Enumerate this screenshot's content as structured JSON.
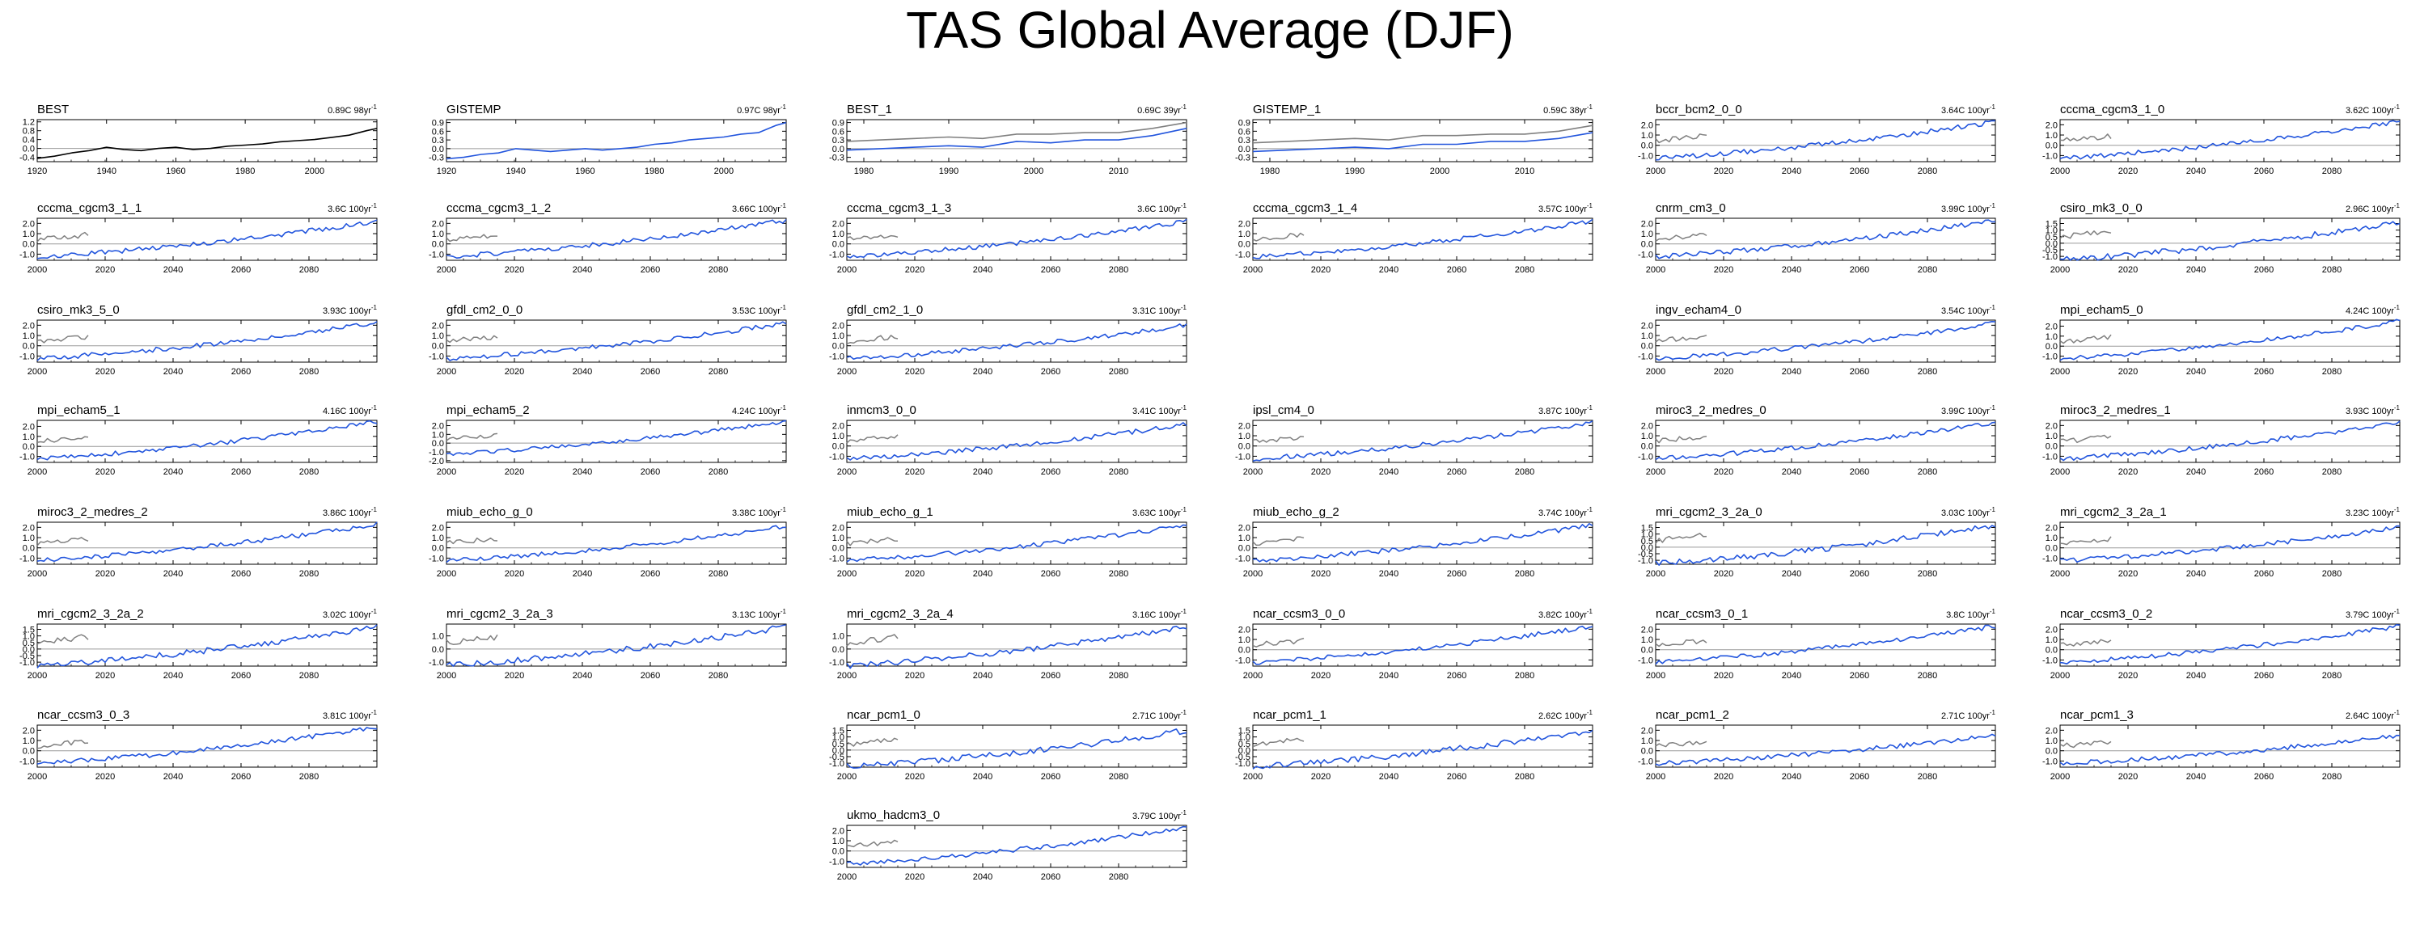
{
  "title": "TAS Global Average (DJF)",
  "colors": {
    "observed": "#000000",
    "model": "#2255dd",
    "reference": "#808080",
    "zero_line": "#9a9a9a"
  },
  "chart_data": [
    {
      "type": "line",
      "name": "BEST",
      "trend": "0.89C 98yr",
      "trend_main": "0.89C 98yr",
      "trend_sup": "-1",
      "xlim": [
        1920,
        2018
      ],
      "xticks": [
        "1920",
        "1940",
        "1960",
        "1980",
        "2000"
      ],
      "yticks": [
        "1.2",
        "0.8",
        "0.4",
        "0.0",
        "-0.4"
      ],
      "ylim": [
        -0.6,
        1.3
      ],
      "style": "obs",
      "x": [
        1920,
        1925,
        1930,
        1935,
        1940,
        1945,
        1950,
        1955,
        1960,
        1965,
        1970,
        1975,
        1980,
        1985,
        1990,
        1995,
        2000,
        2005,
        2010,
        2015,
        2018
      ],
      "y": [
        -0.45,
        -0.35,
        -0.2,
        -0.1,
        0.05,
        -0.05,
        -0.1,
        0.0,
        0.05,
        -0.05,
        0.0,
        0.1,
        0.15,
        0.2,
        0.3,
        0.35,
        0.4,
        0.5,
        0.6,
        0.8,
        0.9
      ]
    },
    {
      "type": "line",
      "name": "GISTEMP",
      "trend": "0.97C 98yr",
      "trend_main": "0.97C 98yr",
      "trend_sup": "-1",
      "xlim": [
        1920,
        2018
      ],
      "xticks": [
        "1920",
        "1940",
        "1960",
        "1980",
        "2000"
      ],
      "yticks": [
        "0.9",
        "0.6",
        "0.3",
        "0.0",
        "-0.3"
      ],
      "ylim": [
        -0.45,
        1.0
      ],
      "style": "model",
      "x": [
        1920,
        1925,
        1930,
        1935,
        1940,
        1945,
        1950,
        1955,
        1960,
        1965,
        1970,
        1975,
        1980,
        1985,
        1990,
        1995,
        2000,
        2005,
        2010,
        2015,
        2018
      ],
      "y": [
        -0.35,
        -0.3,
        -0.2,
        -0.15,
        0.0,
        -0.05,
        -0.1,
        -0.05,
        0.0,
        -0.05,
        0.0,
        0.05,
        0.15,
        0.2,
        0.3,
        0.35,
        0.4,
        0.5,
        0.55,
        0.8,
        0.9
      ]
    },
    {
      "type": "line",
      "name": "BEST_1",
      "trend": "0.69C 39yr",
      "trend_main": "0.69C 39yr",
      "trend_sup": "-1",
      "xlim": [
        1978,
        2018
      ],
      "xticks": [
        "1980",
        "1990",
        "2000",
        "2010"
      ],
      "yticks": [
        "0.9",
        "0.6",
        "0.3",
        "0.0",
        "-0.3"
      ],
      "ylim": [
        -0.45,
        1.0
      ],
      "style": "pair",
      "x": [
        1978,
        1982,
        1986,
        1990,
        1994,
        1998,
        2002,
        2006,
        2010,
        2014,
        2018
      ],
      "y": [
        -0.05,
        0.0,
        0.05,
        0.1,
        0.05,
        0.25,
        0.2,
        0.3,
        0.3,
        0.45,
        0.7
      ],
      "y2": [
        0.25,
        0.3,
        0.35,
        0.4,
        0.35,
        0.5,
        0.5,
        0.55,
        0.55,
        0.7,
        0.9
      ]
    },
    {
      "type": "line",
      "name": "GISTEMP_1",
      "trend": "0.59C 38yr",
      "trend_main": "0.59C 38yr",
      "trend_sup": "-1",
      "xlim": [
        1978,
        2018
      ],
      "xticks": [
        "1980",
        "1990",
        "2000",
        "2010"
      ],
      "yticks": [
        "0.9",
        "0.6",
        "0.3",
        "0.0",
        "-0.3"
      ],
      "ylim": [
        -0.45,
        1.0
      ],
      "style": "pair",
      "x": [
        1978,
        1982,
        1986,
        1990,
        1994,
        1998,
        2002,
        2006,
        2010,
        2014,
        2018
      ],
      "y": [
        -0.1,
        -0.05,
        0.0,
        0.05,
        0.0,
        0.15,
        0.15,
        0.25,
        0.25,
        0.35,
        0.55
      ],
      "y2": [
        0.2,
        0.25,
        0.3,
        0.35,
        0.3,
        0.45,
        0.45,
        0.5,
        0.5,
        0.6,
        0.8
      ]
    },
    {
      "type": "line",
      "name": "bccr_bcm2_0_0",
      "trend": "3.64C 100yr",
      "trend_main": "3.64C 100yr",
      "trend_sup": "-1",
      "style": "proj",
      "yticks": [
        "2.0",
        "1.0",
        "0.0",
        "-1.0"
      ],
      "ylim": [
        -1.6,
        2.5
      ],
      "end": 2.3
    },
    {
      "type": "line",
      "name": "cccma_cgcm3_1_0",
      "trend": "3.62C 100yr",
      "trend_main": "3.62C 100yr",
      "trend_sup": "-1",
      "style": "proj",
      "yticks": [
        "2.0",
        "1.0",
        "0.0",
        "-1.0"
      ],
      "ylim": [
        -1.6,
        2.5
      ],
      "end": 2.3
    },
    {
      "type": "line",
      "name": "cccma_cgcm3_1_1",
      "trend": "3.6C 100yr",
      "trend_main": "3.6C 100yr",
      "trend_sup": "-1",
      "style": "proj",
      "yticks": [
        "2.0",
        "1.0",
        "0.0",
        "-1.0"
      ],
      "ylim": [
        -1.6,
        2.5
      ],
      "end": 2.2
    },
    {
      "type": "line",
      "name": "cccma_cgcm3_1_2",
      "trend": "3.66C 100yr",
      "trend_main": "3.66C 100yr",
      "trend_sup": "-1",
      "style": "proj",
      "yticks": [
        "2.0",
        "1.0",
        "0.0",
        "-1.0"
      ],
      "ylim": [
        -1.6,
        2.5
      ],
      "end": 2.3
    },
    {
      "type": "line",
      "name": "cccma_cgcm3_1_3",
      "trend": "3.6C 100yr",
      "trend_main": "3.6C 100yr",
      "trend_sup": "-1",
      "style": "proj",
      "yticks": [
        "2.0",
        "1.0",
        "0.0",
        "-1.0"
      ],
      "ylim": [
        -1.6,
        2.5
      ],
      "end": 2.2
    },
    {
      "type": "line",
      "name": "cccma_cgcm3_1_4",
      "trend": "3.57C 100yr",
      "trend_main": "3.57C 100yr",
      "trend_sup": "-1",
      "style": "proj",
      "yticks": [
        "2.0",
        "1.0",
        "0.0",
        "-1.0"
      ],
      "ylim": [
        -1.6,
        2.5
      ],
      "end": 2.2
    },
    {
      "type": "line",
      "name": "cnrm_cm3_0",
      "trend": "3.99C 100yr",
      "trend_main": "3.99C 100yr",
      "trend_sup": "-1",
      "style": "proj",
      "yticks": [
        "2.0",
        "1.0",
        "0.0",
        "-1.0"
      ],
      "ylim": [
        -1.6,
        2.5
      ],
      "end": 2.3
    },
    {
      "type": "line",
      "name": "csiro_mk3_0_0",
      "trend": "2.96C 100yr",
      "trend_main": "2.96C 100yr",
      "trend_sup": "-1",
      "style": "proj",
      "yticks": [
        "1.5",
        "1.0",
        "0.5",
        "0.0",
        "-0.5",
        "-1.0"
      ],
      "ylim": [
        -1.3,
        1.9
      ],
      "end": 1.6
    },
    {
      "type": "line",
      "name": "csiro_mk3_5_0",
      "trend": "3.93C 100yr",
      "trend_main": "3.93C 100yr",
      "trend_sup": "-1",
      "style": "proj",
      "yticks": [
        "2.0",
        "1.0",
        "0.0",
        "-1.0"
      ],
      "ylim": [
        -1.6,
        2.5
      ],
      "end": 2.3
    },
    {
      "type": "line",
      "name": "gfdl_cm2_0_0",
      "trend": "3.53C 100yr",
      "trend_main": "3.53C 100yr",
      "trend_sup": "-1",
      "style": "proj",
      "yticks": [
        "2.0",
        "1.0",
        "0.0",
        "-1.0"
      ],
      "ylim": [
        -1.6,
        2.5
      ],
      "end": 2.2
    },
    {
      "type": "line",
      "name": "gfdl_cm2_1_0",
      "trend": "3.31C 100yr",
      "trend_main": "3.31C 100yr",
      "trend_sup": "-1",
      "style": "proj",
      "yticks": [
        "2.0",
        "1.0",
        "0.0",
        "-1.0"
      ],
      "ylim": [
        -1.6,
        2.5
      ],
      "end": 2.0
    },
    {
      "type": "line",
      "name": "ingv_echam4_0",
      "trend": "3.54C 100yr",
      "trend_main": "3.54C 100yr",
      "trend_sup": "-1",
      "style": "proj",
      "yticks": [
        "2.0",
        "1.0",
        "0.0",
        "-1.0"
      ],
      "ylim": [
        -1.6,
        2.5
      ],
      "end": 2.2
    },
    {
      "type": "line",
      "name": "mpi_echam5_0",
      "trend": "4.24C 100yr",
      "trend_main": "4.24C 100yr",
      "trend_sup": "-1",
      "style": "proj",
      "yticks": [
        "2.0",
        "1.0",
        "0.0",
        "-1.0"
      ],
      "ylim": [
        -1.6,
        2.6
      ],
      "end": 2.5
    },
    {
      "type": "line",
      "name": "mpi_echam5_1",
      "trend": "4.16C 100yr",
      "trend_main": "4.16C 100yr",
      "trend_sup": "-1",
      "style": "proj",
      "yticks": [
        "2.0",
        "1.0",
        "0.0",
        "-1.0"
      ],
      "ylim": [
        -1.6,
        2.6
      ],
      "end": 2.5
    },
    {
      "type": "line",
      "name": "mpi_echam5_2",
      "trend": "4.24C 100yr",
      "trend_main": "4.24C 100yr",
      "trend_sup": "-1",
      "style": "proj",
      "yticks": [
        "2.0",
        "1.0",
        "0.0",
        "-1.0",
        "-2.0"
      ],
      "ylim": [
        -2.2,
        2.6
      ],
      "end": 2.5
    },
    {
      "type": "line",
      "name": "inmcm3_0_0",
      "trend": "3.41C 100yr",
      "trend_main": "3.41C 100yr",
      "trend_sup": "-1",
      "style": "proj",
      "yticks": [
        "2.0",
        "1.0",
        "0.0",
        "-1.0"
      ],
      "ylim": [
        -1.6,
        2.5
      ],
      "end": 2.1
    },
    {
      "type": "line",
      "name": "ipsl_cm4_0",
      "trend": "3.87C 100yr",
      "trend_main": "3.87C 100yr",
      "trend_sup": "-1",
      "style": "proj",
      "yticks": [
        "2.0",
        "1.0",
        "0.0",
        "-1.0"
      ],
      "ylim": [
        -1.6,
        2.5
      ],
      "end": 2.3
    },
    {
      "type": "line",
      "name": "miroc3_2_medres_0",
      "trend": "3.99C 100yr",
      "trend_main": "3.99C 100yr",
      "trend_sup": "-1",
      "style": "proj",
      "yticks": [
        "2.0",
        "1.0",
        "0.0",
        "-1.0"
      ],
      "ylim": [
        -1.6,
        2.5
      ],
      "end": 2.3
    },
    {
      "type": "line",
      "name": "miroc3_2_medres_1",
      "trend": "3.93C 100yr",
      "trend_main": "3.93C 100yr",
      "trend_sup": "-1",
      "style": "proj",
      "yticks": [
        "2.0",
        "1.0",
        "0.0",
        "-1.0"
      ],
      "ylim": [
        -1.6,
        2.5
      ],
      "end": 2.3
    },
    {
      "type": "line",
      "name": "miroc3_2_medres_2",
      "trend": "3.86C 100yr",
      "trend_main": "3.86C 100yr",
      "trend_sup": "-1",
      "style": "proj",
      "yticks": [
        "2.0",
        "1.0",
        "0.0",
        "-1.0"
      ],
      "ylim": [
        -1.6,
        2.5
      ],
      "end": 2.3
    },
    {
      "type": "line",
      "name": "miub_echo_g_0",
      "trend": "3.38C 100yr",
      "trend_main": "3.38C 100yr",
      "trend_sup": "-1",
      "style": "proj",
      "yticks": [
        "2.0",
        "1.0",
        "0.0",
        "-1.0"
      ],
      "ylim": [
        -1.6,
        2.5
      ],
      "end": 2.1
    },
    {
      "type": "line",
      "name": "miub_echo_g_1",
      "trend": "3.63C 100yr",
      "trend_main": "3.63C 100yr",
      "trend_sup": "-1",
      "style": "proj",
      "yticks": [
        "2.0",
        "1.0",
        "0.0",
        "-1.0"
      ],
      "ylim": [
        -1.6,
        2.5
      ],
      "end": 2.2
    },
    {
      "type": "line",
      "name": "miub_echo_g_2",
      "trend": "3.74C 100yr",
      "trend_main": "3.74C 100yr",
      "trend_sup": "-1",
      "style": "proj",
      "yticks": [
        "2.0",
        "1.0",
        "0.0",
        "-1.0"
      ],
      "ylim": [
        -1.6,
        2.5
      ],
      "end": 2.2
    },
    {
      "type": "line",
      "name": "mri_cgcm2_3_2a_0",
      "trend": "3.03C 100yr",
      "trend_main": "3.03C 100yr",
      "trend_sup": "-1",
      "style": "proj",
      "yticks": [
        "1.5",
        "1.0",
        "0.5",
        "0.0",
        "-0.5",
        "-1.0"
      ],
      "ylim": [
        -1.3,
        1.9
      ],
      "end": 1.7
    },
    {
      "type": "line",
      "name": "mri_cgcm2_3_2a_1",
      "trend": "3.23C 100yr",
      "trend_main": "3.23C 100yr",
      "trend_sup": "-1",
      "style": "proj",
      "yticks": [
        "2.0",
        "1.0",
        "0.0",
        "-1.0"
      ],
      "ylim": [
        -1.6,
        2.5
      ],
      "end": 2.0
    },
    {
      "type": "line",
      "name": "mri_cgcm2_3_2a_2",
      "trend": "3.02C 100yr",
      "trend_main": "3.02C 100yr",
      "trend_sup": "-1",
      "style": "proj",
      "yticks": [
        "1.5",
        "1.0",
        "0.5",
        "0.0",
        "-0.5",
        "-1.0"
      ],
      "ylim": [
        -1.3,
        1.9
      ],
      "end": 1.7
    },
    {
      "type": "line",
      "name": "mri_cgcm2_3_2a_3",
      "trend": "3.13C 100yr",
      "trend_main": "3.13C 100yr",
      "trend_sup": "-1",
      "style": "proj",
      "yticks": [
        "1.0",
        "0.0",
        "-1.0"
      ],
      "ylim": [
        -1.3,
        1.9
      ],
      "end": 1.7
    },
    {
      "type": "line",
      "name": "mri_cgcm2_3_2a_4",
      "trend": "3.16C 100yr",
      "trend_main": "3.16C 100yr",
      "trend_sup": "-1",
      "style": "proj",
      "yticks": [
        "1.0",
        "0.0",
        "-1.0"
      ],
      "ylim": [
        -1.3,
        1.9
      ],
      "end": 1.7
    },
    {
      "type": "line",
      "name": "ncar_ccsm3_0_0",
      "trend": "3.82C 100yr",
      "trend_main": "3.82C 100yr",
      "trend_sup": "-1",
      "style": "proj",
      "yticks": [
        "2.0",
        "1.0",
        "0.0",
        "-1.0"
      ],
      "ylim": [
        -1.6,
        2.5
      ],
      "end": 2.3
    },
    {
      "type": "line",
      "name": "ncar_ccsm3_0_1",
      "trend": "3.8C 100yr",
      "trend_main": "3.8C 100yr",
      "trend_sup": "-1",
      "style": "proj",
      "yticks": [
        "2.0",
        "1.0",
        "0.0",
        "-1.0"
      ],
      "ylim": [
        -1.6,
        2.5
      ],
      "end": 2.3
    },
    {
      "type": "line",
      "name": "ncar_ccsm3_0_2",
      "trend": "3.79C 100yr",
      "trend_main": "3.79C 100yr",
      "trend_sup": "-1",
      "style": "proj",
      "yticks": [
        "2.0",
        "1.0",
        "0.0",
        "-1.0"
      ],
      "ylim": [
        -1.6,
        2.5
      ],
      "end": 2.3
    },
    {
      "type": "line",
      "name": "ncar_ccsm3_0_3",
      "trend": "3.81C 100yr",
      "trend_main": "3.81C 100yr",
      "trend_sup": "-1",
      "style": "proj",
      "yticks": [
        "2.0",
        "1.0",
        "0.0",
        "-1.0"
      ],
      "ylim": [
        -1.6,
        2.5
      ],
      "end": 2.3
    },
    {
      "type": "line",
      "name": "ncar_pcm1_0",
      "trend": "2.71C 100yr",
      "trend_main": "2.71C 100yr",
      "trend_sup": "-1",
      "style": "proj",
      "yticks": [
        "1.5",
        "1.0",
        "0.5",
        "0.0",
        "-0.5",
        "-1.0"
      ],
      "ylim": [
        -1.3,
        1.9
      ],
      "end": 1.5
    },
    {
      "type": "line",
      "name": "ncar_pcm1_1",
      "trend": "2.62C 100yr",
      "trend_main": "2.62C 100yr",
      "trend_sup": "-1",
      "style": "proj",
      "yticks": [
        "1.5",
        "1.0",
        "0.5",
        "0.0",
        "-0.5",
        "-1.0"
      ],
      "ylim": [
        -1.3,
        1.9
      ],
      "end": 1.5
    },
    {
      "type": "line",
      "name": "ncar_pcm1_2",
      "trend": "2.71C 100yr",
      "trend_main": "2.71C 100yr",
      "trend_sup": "-1",
      "style": "proj",
      "yticks": [
        "2.0",
        "1.0",
        "0.0",
        "-1.0"
      ],
      "ylim": [
        -1.6,
        2.5
      ],
      "end": 1.5
    },
    {
      "type": "line",
      "name": "ncar_pcm1_3",
      "trend": "2.64C 100yr",
      "trend_main": "2.64C 100yr",
      "trend_sup": "-1",
      "style": "proj",
      "yticks": [
        "2.0",
        "1.0",
        "0.0",
        "-1.0"
      ],
      "ylim": [
        -1.6,
        2.5
      ],
      "end": 1.5
    },
    {
      "type": "line",
      "name": "ukmo_hadcm3_0",
      "trend": "3.79C 100yr",
      "trend_main": "3.79C 100yr",
      "trend_sup": "-1",
      "style": "proj",
      "yticks": [
        "2.0",
        "1.0",
        "0.0",
        "-1.0"
      ],
      "ylim": [
        -1.6,
        2.5
      ],
      "end": 2.3
    }
  ],
  "projection_xticks": [
    "2000",
    "2020",
    "2040",
    "2060",
    "2080"
  ],
  "projection_xlim": [
    2000,
    2100
  ]
}
